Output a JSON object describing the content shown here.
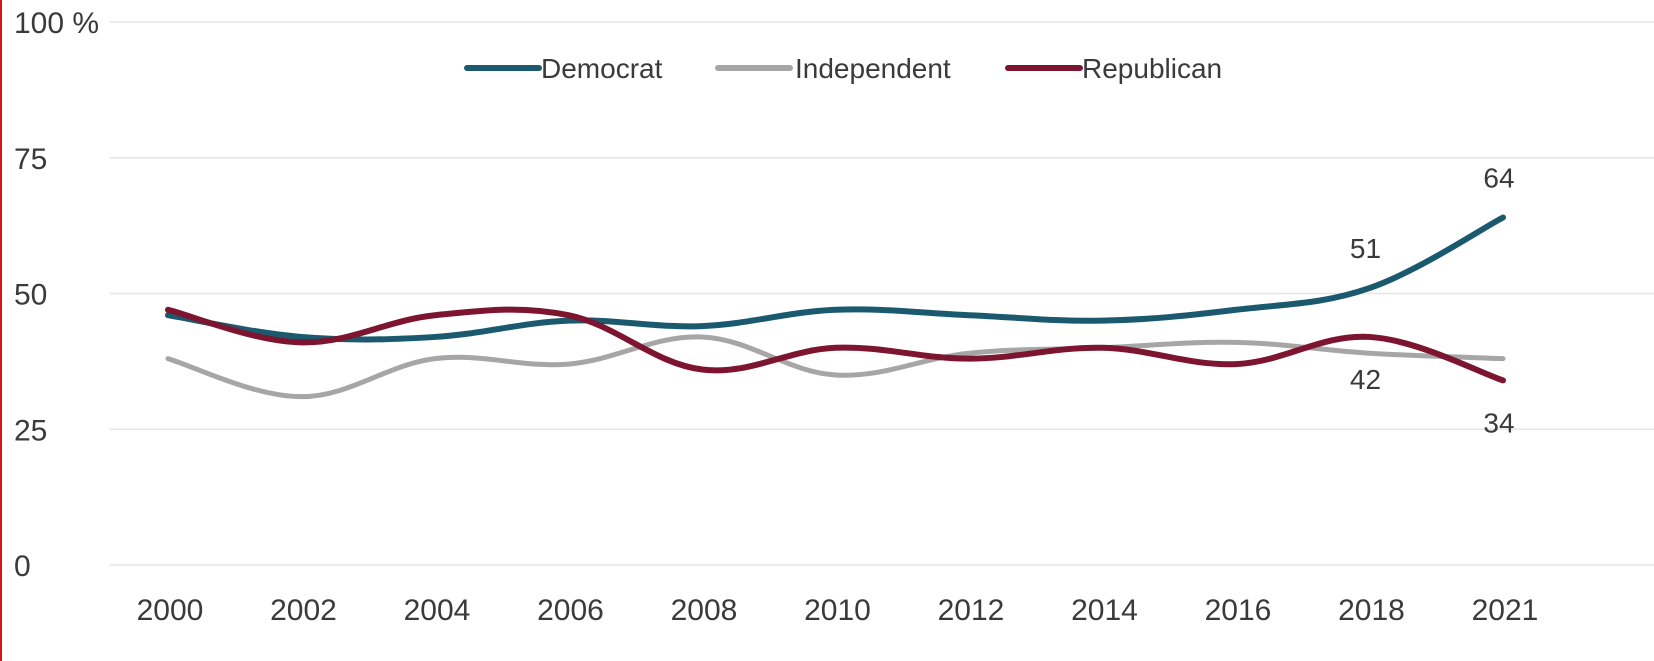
{
  "chart_data": {
    "type": "line",
    "title": "",
    "xlabel": "",
    "ylabel": "",
    "y_unit": "%",
    "ylim": [
      0,
      100
    ],
    "y_ticks": [
      0,
      25,
      50,
      75,
      100
    ],
    "y_tick_labels": [
      "0",
      "25",
      "50",
      "75",
      "100 %"
    ],
    "x": [
      2000,
      2002,
      2004,
      2006,
      2008,
      2010,
      2012,
      2014,
      2016,
      2018,
      2021
    ],
    "x_tick_labels": [
      "2000",
      "2002",
      "2004",
      "2006",
      "2008",
      "2010",
      "2012",
      "2014",
      "2016",
      "2018",
      "2021"
    ],
    "grid": "horizontal",
    "legend_position": "top-center",
    "series": [
      {
        "name": "Democrat",
        "color": "#1b5a6e",
        "values": [
          46,
          42,
          42,
          45,
          44,
          47,
          46,
          45,
          47,
          51,
          64
        ]
      },
      {
        "name": "Independent",
        "color": "#a6a6a6",
        "values": [
          38,
          31,
          38,
          37,
          42,
          35,
          39,
          40,
          41,
          39,
          38
        ]
      },
      {
        "name": "Republican",
        "color": "#7d1530",
        "values": [
          47,
          41,
          46,
          46,
          36,
          40,
          38,
          40,
          37,
          42,
          34
        ]
      }
    ],
    "annotations": [
      {
        "series": "Democrat",
        "x": 2018,
        "value": 51,
        "label": "51",
        "placement": "above"
      },
      {
        "series": "Democrat",
        "x": 2021,
        "value": 64,
        "label": "64",
        "placement": "above"
      },
      {
        "series": "Republican",
        "x": 2018,
        "value": 42,
        "label": "42",
        "placement": "below"
      },
      {
        "series": "Republican",
        "x": 2021,
        "value": 34,
        "label": "34",
        "placement": "below"
      }
    ]
  }
}
